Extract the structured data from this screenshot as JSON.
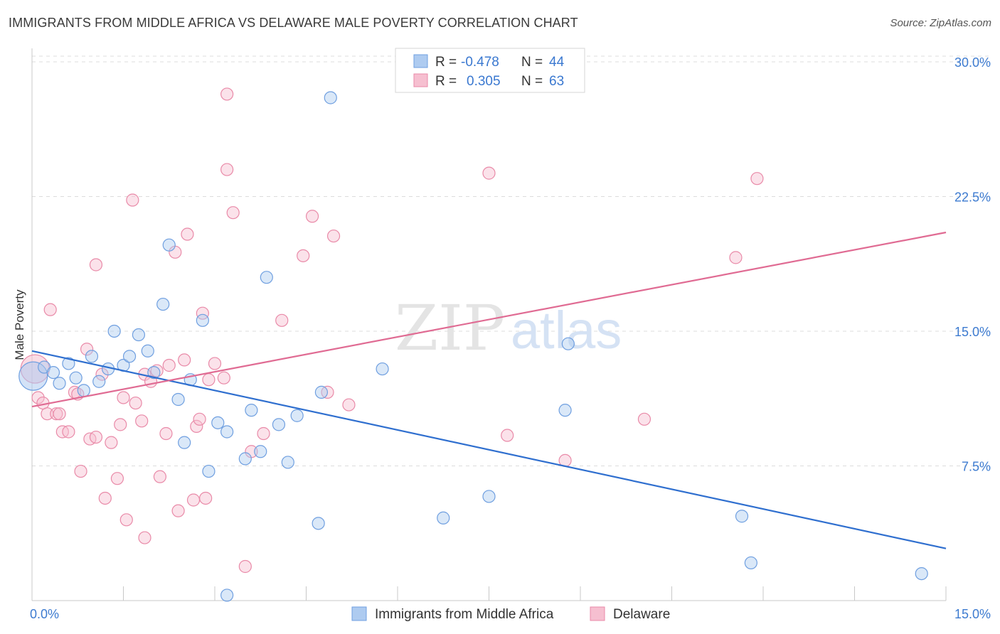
{
  "title": "IMMIGRANTS FROM MIDDLE AFRICA VS DELAWARE MALE POVERTY CORRELATION CHART",
  "source": "Source: ZipAtlas.com",
  "watermark": {
    "part1": "ZIP",
    "part2": "atlas"
  },
  "colors": {
    "blue_fill": "#aecbf0",
    "blue_stroke": "#6f9fe0",
    "blue_line": "#2f6fcf",
    "pink_fill": "#f6bfd0",
    "pink_stroke": "#e98aa8",
    "pink_line": "#e06b93",
    "grid": "#dcdcdc",
    "tick_label": "#3d7bd0"
  },
  "legend": {
    "rows": [
      {
        "r_label": "R =",
        "r_value": "-0.478",
        "n_label": "N =",
        "n_value": "44",
        "series": "blue"
      },
      {
        "r_label": "R =",
        "r_value": "0.305",
        "n_label": "N =",
        "n_value": "63",
        "series": "pink"
      }
    ]
  },
  "chart_data": {
    "type": "scatter",
    "title": "IMMIGRANTS FROM MIDDLE AFRICA VS DELAWARE MALE POVERTY CORRELATION CHART",
    "xlabel": "",
    "ylabel": "Male Poverty",
    "xlim": [
      0,
      15
    ],
    "ylim": [
      0,
      30.75
    ],
    "x_tick_labels": [
      "0.0%",
      "15.0%"
    ],
    "y_ticks": [
      7.5,
      15.0,
      22.5,
      30.0
    ],
    "y_tick_labels": [
      "7.5%",
      "15.0%",
      "22.5%",
      "30.0%"
    ],
    "grid": true,
    "legend_position": "top-center",
    "series": [
      {
        "name": "Immigrants from Middle Africa",
        "color": "blue",
        "trend": {
          "x": [
            0,
            15
          ],
          "y": [
            13.9,
            2.9
          ]
        },
        "points": [
          {
            "x": 0.02,
            "y": 12.5,
            "big": true
          },
          {
            "x": 0.2,
            "y": 13.0
          },
          {
            "x": 0.35,
            "y": 12.7
          },
          {
            "x": 0.45,
            "y": 12.1
          },
          {
            "x": 0.6,
            "y": 13.2
          },
          {
            "x": 0.72,
            "y": 12.4
          },
          {
            "x": 0.85,
            "y": 11.7
          },
          {
            "x": 0.98,
            "y": 13.6
          },
          {
            "x": 1.1,
            "y": 12.2
          },
          {
            "x": 1.25,
            "y": 12.9
          },
          {
            "x": 1.35,
            "y": 15.0
          },
          {
            "x": 1.5,
            "y": 13.1
          },
          {
            "x": 1.6,
            "y": 13.6
          },
          {
            "x": 1.75,
            "y": 14.8
          },
          {
            "x": 1.9,
            "y": 13.9
          },
          {
            "x": 2.0,
            "y": 12.7
          },
          {
            "x": 2.15,
            "y": 16.5
          },
          {
            "x": 2.25,
            "y": 19.8
          },
          {
            "x": 2.4,
            "y": 11.2
          },
          {
            "x": 2.5,
            "y": 8.8
          },
          {
            "x": 2.6,
            "y": 12.3
          },
          {
            "x": 2.8,
            "y": 15.6
          },
          {
            "x": 2.9,
            "y": 7.2
          },
          {
            "x": 3.05,
            "y": 9.9
          },
          {
            "x": 3.2,
            "y": 9.4
          },
          {
            "x": 3.5,
            "y": 7.9
          },
          {
            "x": 3.6,
            "y": 10.6
          },
          {
            "x": 3.75,
            "y": 8.3
          },
          {
            "x": 3.85,
            "y": 18.0
          },
          {
            "x": 4.05,
            "y": 9.8
          },
          {
            "x": 4.2,
            "y": 7.7
          },
          {
            "x": 4.35,
            "y": 10.3
          },
          {
            "x": 4.7,
            "y": 4.3
          },
          {
            "x": 4.75,
            "y": 11.6
          },
          {
            "x": 4.9,
            "y": 28.0
          },
          {
            "x": 5.75,
            "y": 12.9
          },
          {
            "x": 6.75,
            "y": 4.6
          },
          {
            "x": 7.5,
            "y": 5.8
          },
          {
            "x": 8.75,
            "y": 10.6
          },
          {
            "x": 8.8,
            "y": 14.3
          },
          {
            "x": 11.65,
            "y": 4.7
          },
          {
            "x": 11.8,
            "y": 2.1
          },
          {
            "x": 14.6,
            "y": 1.5
          },
          {
            "x": 3.2,
            "y": 0.3
          }
        ]
      },
      {
        "name": "Delaware",
        "color": "pink",
        "trend": {
          "x": [
            0,
            15
          ],
          "y": [
            10.8,
            20.5
          ]
        },
        "points": [
          {
            "x": 0.05,
            "y": 12.9,
            "big": true
          },
          {
            "x": 0.1,
            "y": 11.3
          },
          {
            "x": 0.18,
            "y": 11.0
          },
          {
            "x": 0.25,
            "y": 10.4
          },
          {
            "x": 0.3,
            "y": 16.2
          },
          {
            "x": 0.4,
            "y": 10.4
          },
          {
            "x": 0.45,
            "y": 10.4
          },
          {
            "x": 0.5,
            "y": 9.4
          },
          {
            "x": 0.6,
            "y": 9.4
          },
          {
            "x": 0.7,
            "y": 11.6
          },
          {
            "x": 0.75,
            "y": 11.5
          },
          {
            "x": 0.8,
            "y": 7.2
          },
          {
            "x": 0.9,
            "y": 14.0
          },
          {
            "x": 0.95,
            "y": 9.0
          },
          {
            "x": 1.05,
            "y": 18.7
          },
          {
            "x": 1.05,
            "y": 9.1
          },
          {
            "x": 1.15,
            "y": 12.6
          },
          {
            "x": 1.2,
            "y": 5.7
          },
          {
            "x": 1.3,
            "y": 8.8
          },
          {
            "x": 1.4,
            "y": 6.8
          },
          {
            "x": 1.45,
            "y": 9.8
          },
          {
            "x": 1.5,
            "y": 11.3
          },
          {
            "x": 1.55,
            "y": 4.5
          },
          {
            "x": 1.65,
            "y": 22.3
          },
          {
            "x": 1.7,
            "y": 11.0
          },
          {
            "x": 1.8,
            "y": 10.0
          },
          {
            "x": 1.85,
            "y": 12.6
          },
          {
            "x": 1.85,
            "y": 3.5
          },
          {
            "x": 1.95,
            "y": 12.2
          },
          {
            "x": 2.05,
            "y": 12.8
          },
          {
            "x": 2.1,
            "y": 6.9
          },
          {
            "x": 2.2,
            "y": 9.3
          },
          {
            "x": 2.25,
            "y": 13.1
          },
          {
            "x": 2.35,
            "y": 19.4
          },
          {
            "x": 2.4,
            "y": 5.0
          },
          {
            "x": 2.5,
            "y": 13.4
          },
          {
            "x": 2.55,
            "y": 20.4
          },
          {
            "x": 2.65,
            "y": 5.6
          },
          {
            "x": 2.7,
            "y": 9.7
          },
          {
            "x": 2.75,
            "y": 10.1
          },
          {
            "x": 2.8,
            "y": 16.0
          },
          {
            "x": 2.85,
            "y": 5.7
          },
          {
            "x": 2.9,
            "y": 12.3
          },
          {
            "x": 3.0,
            "y": 13.2
          },
          {
            "x": 3.15,
            "y": 12.4
          },
          {
            "x": 3.2,
            "y": 28.2
          },
          {
            "x": 3.2,
            "y": 24.0
          },
          {
            "x": 3.3,
            "y": 21.6
          },
          {
            "x": 3.5,
            "y": 1.9
          },
          {
            "x": 3.6,
            "y": 8.3
          },
          {
            "x": 3.8,
            "y": 9.3
          },
          {
            "x": 4.1,
            "y": 15.6
          },
          {
            "x": 4.45,
            "y": 19.2
          },
          {
            "x": 4.6,
            "y": 21.4
          },
          {
            "x": 4.85,
            "y": 11.6
          },
          {
            "x": 4.95,
            "y": 20.3
          },
          {
            "x": 5.2,
            "y": 10.9
          },
          {
            "x": 7.5,
            "y": 23.8
          },
          {
            "x": 7.8,
            "y": 9.2
          },
          {
            "x": 8.75,
            "y": 7.8
          },
          {
            "x": 10.05,
            "y": 10.1
          },
          {
            "x": 11.55,
            "y": 19.1
          },
          {
            "x": 11.9,
            "y": 23.5
          }
        ]
      }
    ]
  }
}
